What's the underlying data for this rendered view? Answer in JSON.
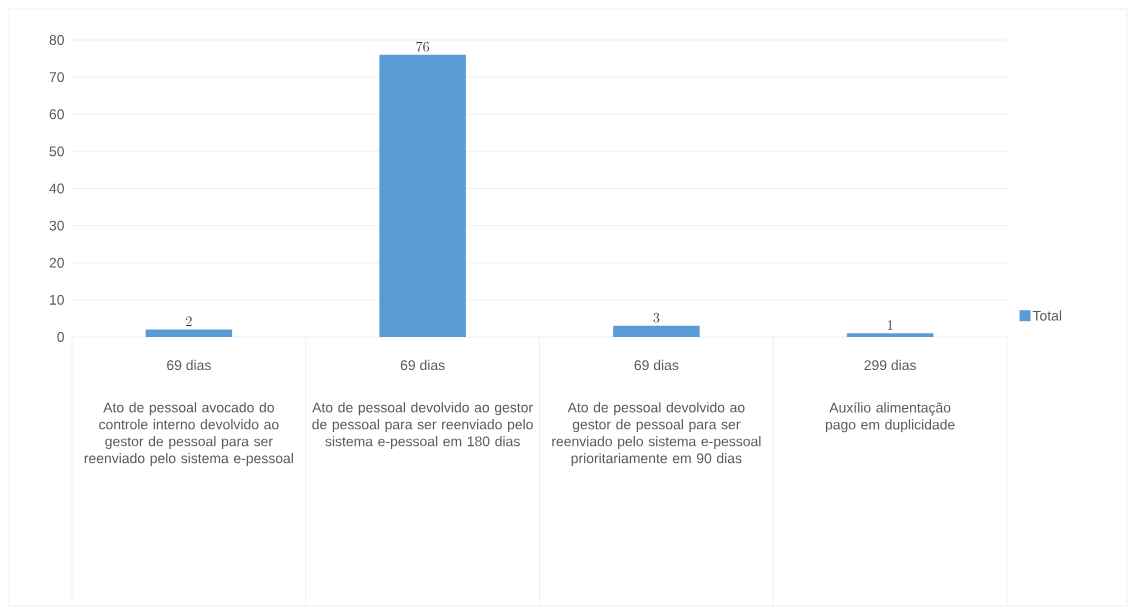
{
  "chart_data": {
    "type": "bar",
    "categories": [
      "Ato de pessoal avocado do controle interno devolvido ao gestor de pessoal para ser reenviado pelo sistema e-pessoal",
      "Ato de pessoal devolvido ao gestor de pessoal para ser reenviado pelo sistema e-pessoal em 180 dias",
      "Ato de pessoal devolvido ao gestor de pessoal para ser reenviado pelo sistema e-pessoal prioritariamente em 90 dias",
      "Auxílio alimentação pago em duplicidade"
    ],
    "annotations": [
      "69 dias",
      "69 dias",
      "69 dias",
      "299 dias"
    ],
    "series": [
      {
        "name": "Total",
        "color": "#5b9bd5",
        "values": [
          2,
          76,
          3,
          1
        ]
      }
    ],
    "ylim": [
      0,
      80
    ],
    "yticks": [
      0,
      10,
      20,
      30,
      40,
      50,
      60,
      70,
      80
    ],
    "grid": "y",
    "legend": "right",
    "data_labels": true
  }
}
